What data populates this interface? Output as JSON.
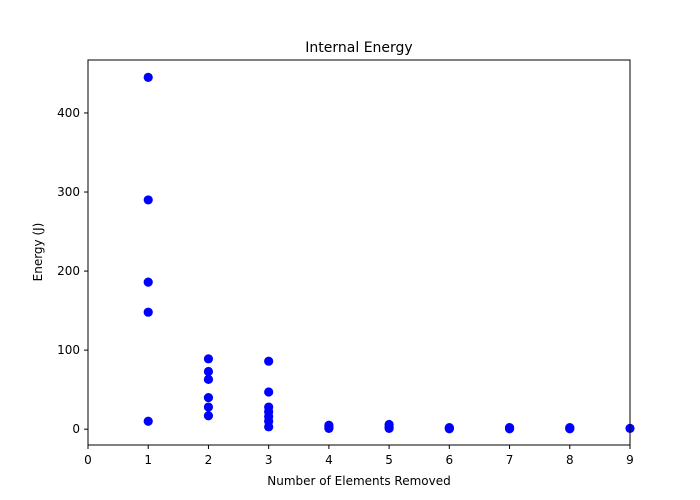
{
  "chart_data": {
    "type": "scatter",
    "title": "Internal Energy",
    "xlabel": "Number of Elements Removed",
    "ylabel": "Energy (J)",
    "xlim": [
      0,
      9
    ],
    "ylim": [
      -20,
      467
    ],
    "xticks": [
      0,
      1,
      2,
      3,
      4,
      5,
      6,
      7,
      8,
      9
    ],
    "yticks": [
      0,
      100,
      200,
      300,
      400
    ],
    "grid": false,
    "legend": "none",
    "marker_color": "#0000ff",
    "series": [
      {
        "points": [
          {
            "x": 1,
            "y": 445
          },
          {
            "x": 1,
            "y": 290
          },
          {
            "x": 1,
            "y": 186
          },
          {
            "x": 1,
            "y": 148
          },
          {
            "x": 1,
            "y": 10
          },
          {
            "x": 2,
            "y": 89
          },
          {
            "x": 2,
            "y": 73
          },
          {
            "x": 2,
            "y": 63
          },
          {
            "x": 2,
            "y": 40
          },
          {
            "x": 2,
            "y": 28
          },
          {
            "x": 2,
            "y": 17
          },
          {
            "x": 3,
            "y": 86
          },
          {
            "x": 3,
            "y": 47
          },
          {
            "x": 3,
            "y": 28
          },
          {
            "x": 3,
            "y": 22
          },
          {
            "x": 3,
            "y": 16
          },
          {
            "x": 3,
            "y": 10
          },
          {
            "x": 3,
            "y": 3
          },
          {
            "x": 4,
            "y": 5
          },
          {
            "x": 4,
            "y": 3
          },
          {
            "x": 4,
            "y": 1
          },
          {
            "x": 5,
            "y": 6
          },
          {
            "x": 5,
            "y": 3
          },
          {
            "x": 5,
            "y": 1
          },
          {
            "x": 6,
            "y": 2
          },
          {
            "x": 6,
            "y": 1
          },
          {
            "x": 6,
            "y": 0.5
          },
          {
            "x": 7,
            "y": 2
          },
          {
            "x": 7,
            "y": 1
          },
          {
            "x": 7,
            "y": 0.5
          },
          {
            "x": 8,
            "y": 2
          },
          {
            "x": 8,
            "y": 1
          },
          {
            "x": 8,
            "y": 0.5
          },
          {
            "x": 9,
            "y": 1
          }
        ]
      }
    ]
  }
}
